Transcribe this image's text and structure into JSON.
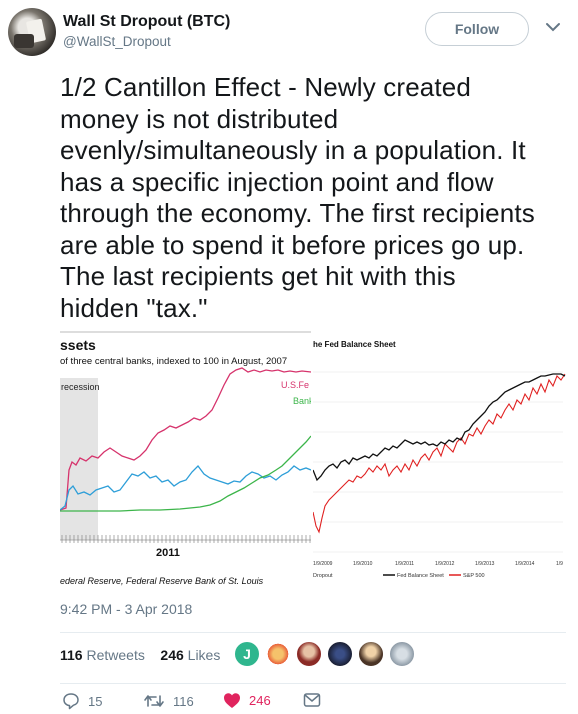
{
  "author": {
    "name": "Wall St Dropout (BTC)",
    "handle": "@WallSt_Dropout"
  },
  "follow_label": "Follow",
  "tweet": {
    "lines": [
      "1/2 Cantillon Effect - Newly created",
      "money is not distributed",
      "evenly/simultaneously in a population. It",
      "has a specific injection point and flow",
      "through the economy. The first recipients",
      "are able to spend it before prices go up.",
      "The last recipients get hit with this",
      "hidden \"tax.\""
    ],
    "timestamp": "9:42 PM - 3 Apr 2018",
    "retweets_count": "116",
    "retweets_label": "Retweets",
    "likes_count": "246",
    "likes_label": "Likes",
    "reply_count": "15",
    "retweet_action_count": "116",
    "like_action_count": "246"
  },
  "likers": [
    "#2fb68e",
    "#f2a33a",
    "#b23a33",
    "#1f2a44",
    "#c9a27a",
    "#a9b7c2"
  ],
  "chart_data": [
    {
      "type": "line",
      "title": "ssets",
      "subtitle": "of three central banks, indexed to 100 in August, 2007",
      "annotation": "recession",
      "source": "ederal Reserve, Federal Reserve Bank of St. Louis",
      "x_tick_label": "2011",
      "series": [
        {
          "name": "U.S.Fe",
          "color": "#d6336c"
        },
        {
          "name": "Bank",
          "color": "#3cb54a"
        },
        {
          "name": "",
          "color": "#2d9ed8"
        }
      ]
    },
    {
      "type": "line",
      "title": "he Fed Balance Sheet",
      "source": "Dropout",
      "x_tick_labels": [
        "1/9/2009",
        "1/9/2010",
        "1/9/2011",
        "1/9/2012",
        "1/9/2013",
        "1/9/2014",
        "1/9"
      ],
      "series": [
        {
          "name": "Fed Balance Sheet",
          "color": "#111111"
        },
        {
          "name": "S&P 500",
          "color": "#e02020"
        }
      ]
    }
  ]
}
